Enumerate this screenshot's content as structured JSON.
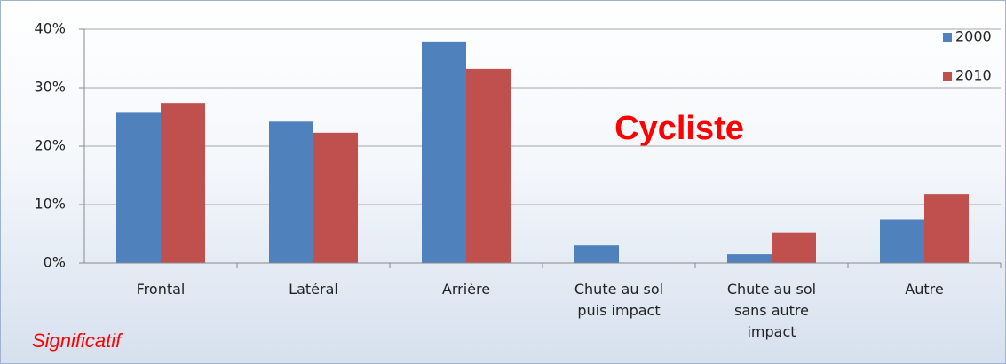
{
  "chart_data": {
    "type": "bar",
    "categories": [
      "Frontal",
      "Latéral",
      "Arrière",
      "Chute au sol\npuis impact",
      "Chute au sol\nsans autre\nimpact",
      "Autre"
    ],
    "series": [
      {
        "name": "2000",
        "color": "#4f81bd",
        "values": [
          25.7,
          24.2,
          37.9,
          3.0,
          1.5,
          7.5
        ]
      },
      {
        "name": "2010",
        "color": "#c0504d",
        "values": [
          27.4,
          22.3,
          33.2,
          0,
          5.2,
          11.8
        ]
      }
    ],
    "ylim": [
      0,
      40
    ],
    "yticks": [
      {
        "value": 0,
        "label": "0%"
      },
      {
        "value": 10,
        "label": "10%"
      },
      {
        "value": 20,
        "label": "20%"
      },
      {
        "value": 30,
        "label": "30%"
      },
      {
        "value": 40,
        "label": "40%"
      }
    ],
    "grid": true,
    "legend": "top-right",
    "annotations": [
      "Cycliste",
      "Significatif"
    ]
  }
}
